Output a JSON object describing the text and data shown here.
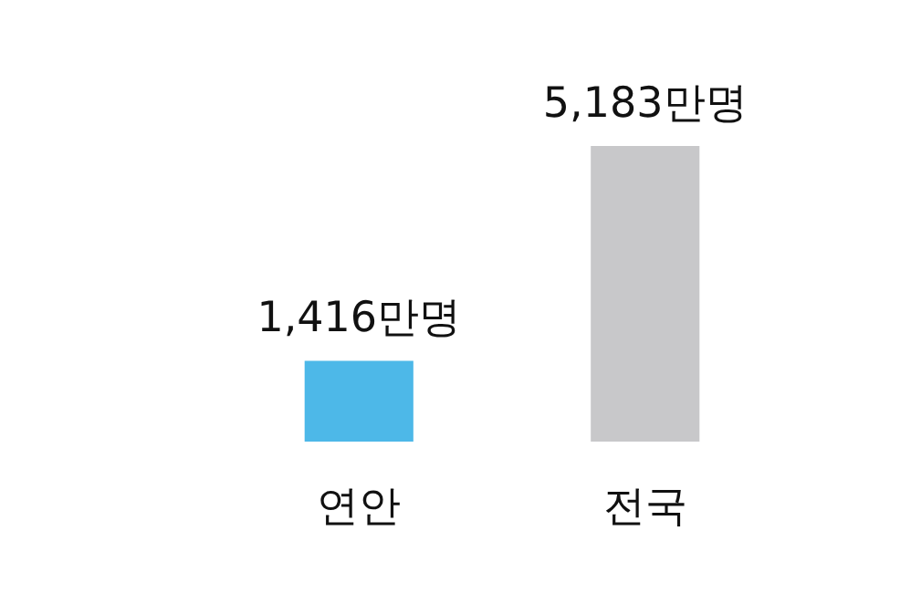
{
  "chart_data": {
    "type": "bar",
    "categories": [
      "연안",
      "전국"
    ],
    "values": [
      1416,
      5183
    ],
    "value_labels": [
      "1,416만명",
      "5,183만명"
    ],
    "colors": [
      "#4db8e8",
      "#c8c8ca"
    ]
  }
}
